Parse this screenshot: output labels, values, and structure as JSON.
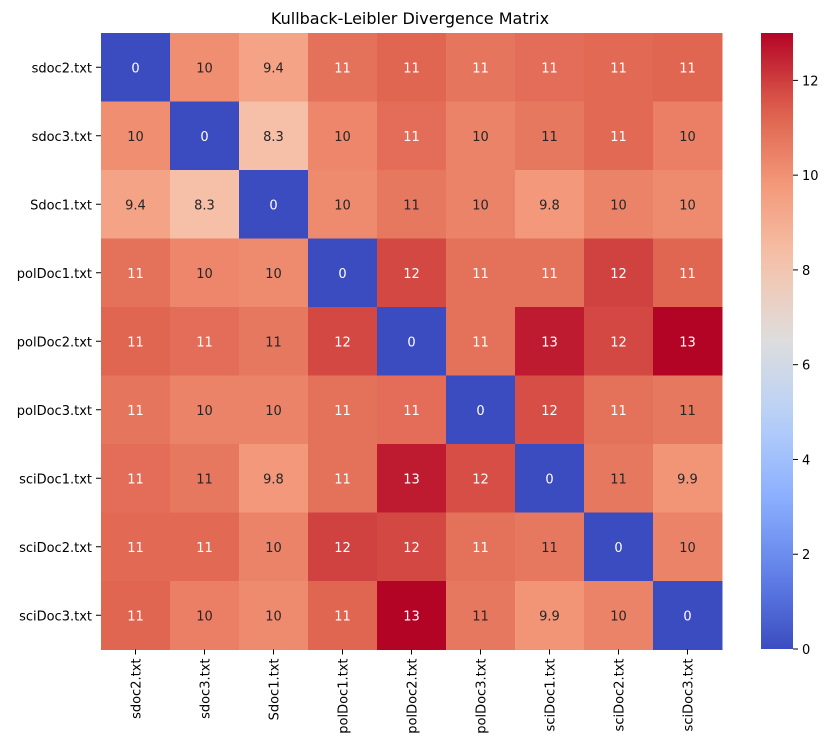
{
  "chart_data": {
    "type": "heatmap",
    "title": "Kullback-Leibler Divergence Matrix",
    "rows": [
      "sdoc2.txt",
      "sdoc3.txt",
      "Sdoc1.txt",
      "polDoc1.txt",
      "polDoc2.txt",
      "polDoc3.txt",
      "sciDoc1.txt",
      "sciDoc2.txt",
      "sciDoc3.txt"
    ],
    "columns": [
      "sdoc2.txt",
      "sdoc3.txt",
      "Sdoc1.txt",
      "polDoc1.txt",
      "polDoc2.txt",
      "polDoc3.txt",
      "sciDoc1.txt",
      "sciDoc2.txt",
      "sciDoc3.txt"
    ],
    "values": [
      [
        0,
        10.1,
        9.4,
        10.9,
        11.2,
        10.8,
        11.0,
        11.1,
        11.2
      ],
      [
        10.1,
        0,
        8.3,
        10.3,
        11.0,
        10.4,
        10.7,
        11.1,
        10.5
      ],
      [
        9.4,
        8.3,
        0,
        10.2,
        10.7,
        10.4,
        9.8,
        10.4,
        10.2
      ],
      [
        10.9,
        10.3,
        10.2,
        0,
        11.8,
        10.9,
        10.9,
        11.9,
        11.2
      ],
      [
        11.2,
        11.0,
        10.7,
        11.8,
        0,
        10.9,
        12.6,
        11.8,
        13.0
      ],
      [
        10.8,
        10.4,
        10.4,
        10.9,
        11.0,
        0,
        11.7,
        10.9,
        10.7
      ],
      [
        11.0,
        10.7,
        9.8,
        10.9,
        12.6,
        11.7,
        0,
        10.7,
        9.9
      ],
      [
        11.1,
        11.1,
        10.4,
        11.9,
        11.8,
        10.9,
        10.7,
        0,
        10.4
      ],
      [
        11.2,
        10.5,
        10.2,
        11.2,
        13.0,
        10.7,
        9.9,
        10.4,
        0
      ]
    ],
    "labels": [
      [
        "0",
        "10",
        "9.4",
        "11",
        "11",
        "11",
        "11",
        "11",
        "11"
      ],
      [
        "10",
        "0",
        "8.3",
        "10",
        "11",
        "10",
        "11",
        "11",
        "10"
      ],
      [
        "9.4",
        "8.3",
        "0",
        "10",
        "11",
        "10",
        "9.8",
        "10",
        "10"
      ],
      [
        "11",
        "10",
        "10",
        "0",
        "12",
        "11",
        "11",
        "12",
        "11"
      ],
      [
        "11",
        "11",
        "11",
        "12",
        "0",
        "11",
        "13",
        "12",
        "13"
      ],
      [
        "11",
        "10",
        "10",
        "11",
        "11",
        "0",
        "12",
        "11",
        "11"
      ],
      [
        "11",
        "11",
        "9.8",
        "11",
        "13",
        "12",
        "0",
        "11",
        "9.9"
      ],
      [
        "11",
        "11",
        "10",
        "12",
        "12",
        "11",
        "11",
        "0",
        "10"
      ],
      [
        "11",
        "10",
        "10",
        "11",
        "13",
        "11",
        "9.9",
        "10",
        "0"
      ]
    ],
    "colormap": "coolwarm",
    "vmin": 0,
    "vmax": 13,
    "colorbar_ticks": [
      0,
      2,
      4,
      6,
      8,
      10,
      12
    ],
    "colors": {
      "low": "#3b4cc0",
      "mid": "#dddddd",
      "high": "#b40426"
    }
  }
}
